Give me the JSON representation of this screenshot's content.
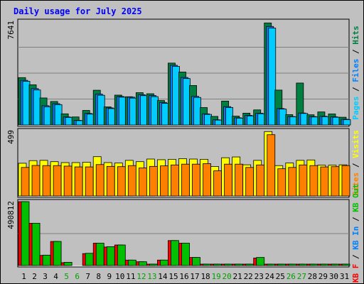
{
  "chart_data": {
    "type": "bar",
    "title": "Daily usage for July 2025",
    "x": [
      "1",
      "2",
      "3",
      "4",
      "5",
      "6",
      "7",
      "8",
      "9",
      "10",
      "11",
      "12",
      "13",
      "14",
      "15",
      "16",
      "17",
      "18",
      "19",
      "20",
      "21",
      "22",
      "23",
      "24",
      "25",
      "26",
      "27",
      "28",
      "29",
      "30",
      "31"
    ],
    "weekend_days": [
      "5",
      "6",
      "12",
      "13",
      "19",
      "20",
      "26",
      "27"
    ],
    "panels": [
      {
        "name": "hits-files-pages",
        "ymax_label": "7641",
        "ymax": 7641,
        "right_label_parts": [
          {
            "text": "Pages",
            "color": "#00ccff"
          },
          {
            "text": " / ",
            "color": "#000000"
          },
          {
            "text": "Files",
            "color": "#0080ff"
          },
          {
            "text": " / ",
            "color": "#000000"
          },
          {
            "text": "Hits",
            "color": "#008040"
          }
        ],
        "series": [
          {
            "name": "Hits",
            "color": "#008040",
            "values": [
              3490,
              2960,
              1990,
              1730,
              820,
              590,
              1070,
              2560,
              1330,
              2200,
              2080,
              2380,
              2300,
              1800,
              4560,
              3900,
              2910,
              1280,
              630,
              1760,
              650,
              870,
              1110,
              7520,
              2570,
              760,
              3090,
              750,
              960,
              810,
              570
            ]
          },
          {
            "name": "Files",
            "color": "#0080ff",
            "values": [
              3290,
              2680,
              1420,
              1570,
              590,
              340,
              850,
              2270,
              1260,
              2100,
              2050,
              2230,
              2170,
              1660,
              4400,
              3500,
              2110,
              820,
              380,
              1350,
              530,
              710,
              870,
              7260,
              1210,
              620,
              880,
              620,
              640,
              600,
              420
            ]
          },
          {
            "name": "Pages",
            "color": "#00ccff",
            "values": [
              3220,
              2580,
              1340,
              1500,
              560,
              320,
              800,
              2190,
              1210,
              2050,
              1980,
              2160,
              2090,
              1590,
              4320,
              3420,
              2030,
              780,
              360,
              1290,
              500,
              670,
              830,
              7140,
              1170,
              600,
              850,
              590,
              610,
              570,
              390
            ]
          }
        ]
      },
      {
        "name": "visits-sites",
        "ymax_label": "499",
        "ymax": 499,
        "right_label_parts": [
          {
            "text": "Sites",
            "color": "#ff8000"
          },
          {
            "text": " / ",
            "color": "#000000"
          },
          {
            "text": "Visits",
            "color": "#ffff00"
          }
        ],
        "series": [
          {
            "name": "Visits",
            "color": "#ffff00",
            "values": [
              250,
              270,
              272,
              262,
              255,
              255,
              258,
              300,
              255,
              252,
              272,
              262,
              282,
              277,
              280,
              285,
              282,
              280,
              225,
              292,
              298,
              238,
              272,
              492,
              232,
              252,
              272,
              275,
              235,
              235,
              238
            ]
          },
          {
            "name": "Sites",
            "color": "#ff8000",
            "values": [
              218,
              233,
              232,
              232,
              228,
              222,
              222,
              240,
              226,
              224,
              232,
              214,
              226,
              230,
              237,
              243,
              243,
              247,
              192,
              243,
              243,
              218,
              237,
              468,
              208,
              218,
              237,
              232,
              222,
              224,
              232
            ]
          }
        ]
      },
      {
        "name": "kbin-kbout-kbf",
        "ymax_label": "490812",
        "ymax": 490812,
        "right_label_parts": [
          {
            "text": "KB F",
            "color": "#ff0000"
          },
          {
            "text": " / ",
            "color": "#000000"
          },
          {
            "text": "KB In",
            "color": "#0080ff"
          },
          {
            "text": " / ",
            "color": "#000000"
          },
          {
            "text": "KB Out",
            "color": "#00c000"
          }
        ],
        "series": [
          {
            "name": "KB F",
            "color": "#ff0000",
            "values": [
              490812,
              325000,
              78000,
              185000,
              22000,
              0,
              92000,
              172000,
              142000,
              158000,
              42000,
              29000,
              9000,
              42000,
              192000,
              172000,
              62000,
              5000,
              4000,
              4000,
              3000,
              3000,
              58000,
              5000,
              4000,
              5000,
              5000,
              3000,
              3000,
              3000,
              3000
            ]
          },
          {
            "name": "KB Out",
            "color": "#00c000",
            "values": [
              490812,
              325000,
              80000,
              185000,
              25000,
              0,
              94000,
              172000,
              145000,
              158000,
              42000,
              29000,
              11000,
              42000,
              192000,
              172000,
              62000,
              5000,
              4000,
              4000,
              3000,
              3000,
              62000,
              5000,
              4000,
              5000,
              5000,
              3000,
              3000,
              3000,
              3000
            ]
          }
        ]
      }
    ]
  }
}
